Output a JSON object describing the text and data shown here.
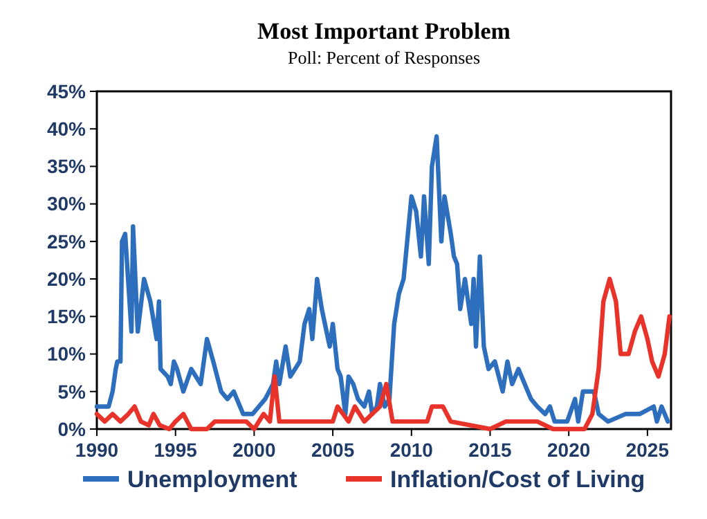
{
  "chart_data": {
    "type": "line",
    "title": "Most Important Problem",
    "subtitle": "Poll: Percent of Responses",
    "xlim": [
      1990,
      2026.5
    ],
    "xticks": [
      1990,
      1995,
      2000,
      2005,
      2010,
      2015,
      2020,
      2025
    ],
    "ylim": [
      0,
      45
    ],
    "yticks": [
      {
        "value": 0,
        "label": "0%"
      },
      {
        "value": 5,
        "label": "5%"
      },
      {
        "value": 10,
        "label": "10%"
      },
      {
        "value": 15,
        "label": "15%"
      },
      {
        "value": 20,
        "label": "20%"
      },
      {
        "value": 25,
        "label": "25%"
      },
      {
        "value": 30,
        "label": "30%"
      },
      {
        "value": 35,
        "label": "35%"
      },
      {
        "value": 40,
        "label": "40%"
      },
      {
        "value": 45,
        "label": "45%"
      }
    ],
    "grid": false,
    "legend": "bottom",
    "line_style": "solid",
    "series": [
      {
        "name": "Unemployment",
        "color": "#2e6fbd",
        "x": [
          1990,
          1990.75,
          1991,
          1991.2,
          1991.3,
          1991.5,
          1991.6,
          1991.8,
          1992.2,
          1992.3,
          1992.6,
          1993,
          1993.4,
          1993.8,
          1993.95,
          1994.05,
          1994.5,
          1994.7,
          1994.9,
          1995.1,
          1995.5,
          1996,
          1996.6,
          1997,
          1997.4,
          1997.9,
          1998.3,
          1998.7,
          1999.3,
          1999.9,
          2000.3,
          2000.7,
          2001.2,
          2001.4,
          2001.6,
          2002,
          2002.3,
          2002.6,
          2002.9,
          2003.2,
          2003.5,
          2003.7,
          2004,
          2004.3,
          2004.6,
          2004.8,
          2005,
          2005.3,
          2005.5,
          2005.8,
          2006,
          2006.3,
          2006.6,
          2007,
          2007.3,
          2007.5,
          2007.8,
          2008,
          2008.3,
          2008.6,
          2008.9,
          2009.2,
          2009.5,
          2010,
          2010.3,
          2010.6,
          2010.8,
          2011.1,
          2011.3,
          2011.6,
          2011.9,
          2012.1,
          2012.5,
          2012.7,
          2012.9,
          2013.1,
          2013.4,
          2013.8,
          2013.95,
          2014.1,
          2014.35,
          2014.6,
          2014.9,
          2015.3,
          2015.8,
          2016.1,
          2016.4,
          2016.8,
          2017.2,
          2017.6,
          2018,
          2018.5,
          2018.8,
          2019.1,
          2019.9,
          2020.4,
          2020.6,
          2020.9,
          2021.6,
          2021.9,
          2022.5,
          2023.6,
          2024.5,
          2025.4,
          2025.6,
          2025.9,
          2026.3
        ],
        "values": [
          3,
          3,
          5,
          8,
          9,
          9,
          25,
          26,
          13,
          27,
          13,
          20,
          17,
          12,
          17,
          8,
          7,
          6,
          9,
          8,
          5,
          8,
          6,
          12,
          9,
          5,
          4,
          5,
          2,
          2,
          3,
          4,
          6,
          9,
          6,
          11,
          7,
          8,
          9,
          14,
          16,
          12,
          20,
          16,
          13,
          11,
          14,
          8,
          7,
          2,
          7,
          6,
          4,
          3,
          5,
          2,
          3,
          6,
          3,
          4,
          14,
          18,
          20,
          31,
          29,
          23,
          31,
          22,
          35,
          39,
          25,
          31,
          26,
          23,
          22,
          16,
          20,
          14,
          20,
          11,
          23,
          11,
          8,
          9,
          5,
          9,
          6,
          8,
          6,
          4,
          3,
          2,
          3,
          1,
          1,
          4,
          1,
          5,
          5,
          2,
          1,
          2,
          2,
          3,
          1,
          3,
          1
        ]
      },
      {
        "name": "Inflation/Cost of Living",
        "color": "#e8332a",
        "x": [
          1990,
          1990.5,
          1991,
          1991.5,
          1992,
          1992.4,
          1992.8,
          1993.3,
          1993.6,
          1994,
          1994.6,
          1995,
          1995.5,
          1996,
          1997,
          1997.5,
          1999.5,
          2000,
          2000.6,
          2001,
          2001.3,
          2001.6,
          2002,
          2005,
          2005.3,
          2006,
          2006.4,
          2007,
          2008,
          2008.4,
          2008.8,
          2011,
          2011.3,
          2012,
          2012.5,
          2015,
          2016,
          2018,
          2019,
          2021,
          2021.5,
          2021.9,
          2022.2,
          2022.6,
          2023,
          2023.3,
          2023.8,
          2024.2,
          2024.6,
          2025,
          2025.3,
          2025.7,
          2026.1,
          2026.4
        ],
        "values": [
          2,
          1,
          2,
          1,
          2,
          3,
          1,
          0.5,
          2,
          0.5,
          0,
          1,
          2,
          0,
          0,
          1,
          1,
          0,
          2,
          1,
          7,
          1,
          1,
          1,
          3,
          1,
          3,
          1,
          3,
          6,
          1,
          1,
          3,
          3,
          1,
          0,
          1,
          1,
          0,
          0,
          2,
          8,
          17,
          20,
          17,
          10,
          10,
          13,
          15,
          12,
          9,
          7,
          10,
          15
        ]
      }
    ]
  }
}
